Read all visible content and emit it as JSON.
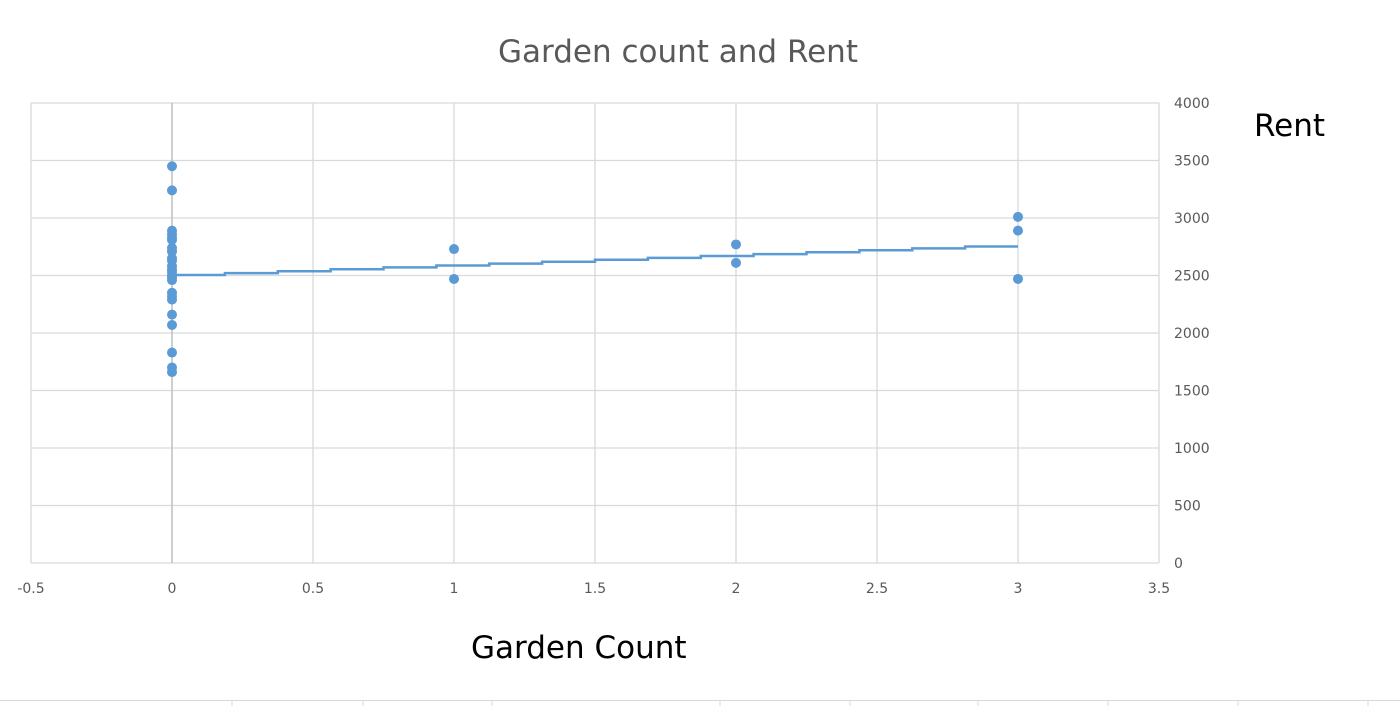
{
  "chart_data": {
    "type": "scatter",
    "title": "Garden count and Rent",
    "xlabel": "Garden Count",
    "ylabel": "Rent",
    "xlim": [
      -0.5,
      3.5
    ],
    "ylim": [
      0,
      4000
    ],
    "x_ticks": [
      "-0.5",
      "0",
      "0.5",
      "1",
      "1.5",
      "2",
      "2.5",
      "3",
      "3.5"
    ],
    "y_ticks": [
      "0",
      "500",
      "1000",
      "1500",
      "2000",
      "2500",
      "3000",
      "3500",
      "4000"
    ],
    "y_axis_side": "right",
    "grid": true,
    "series": [
      {
        "color": "#5b9bd5",
        "points": [
          [
            0,
            3450
          ],
          [
            0,
            3240
          ],
          [
            0,
            2890
          ],
          [
            0,
            2860
          ],
          [
            0,
            2830
          ],
          [
            0,
            2810
          ],
          [
            0,
            2740
          ],
          [
            0,
            2710
          ],
          [
            0,
            2650
          ],
          [
            0,
            2630
          ],
          [
            0,
            2580
          ],
          [
            0,
            2550
          ],
          [
            0,
            2530
          ],
          [
            0,
            2500
          ],
          [
            0,
            2480
          ],
          [
            0,
            2460
          ],
          [
            0,
            2350
          ],
          [
            0,
            2320
          ],
          [
            0,
            2290
          ],
          [
            0,
            2160
          ],
          [
            0,
            2070
          ],
          [
            0,
            1830
          ],
          [
            0,
            1700
          ],
          [
            0,
            1660
          ],
          [
            1,
            2730
          ],
          [
            1,
            2470
          ],
          [
            2,
            2770
          ],
          [
            2,
            2610
          ],
          [
            3,
            3010
          ],
          [
            3,
            2890
          ],
          [
            3,
            2470
          ]
        ]
      }
    ],
    "trendline": {
      "type": "linear",
      "color": "#5b9bd5",
      "x": [
        0,
        3
      ],
      "y": [
        2496,
        2760
      ]
    }
  }
}
